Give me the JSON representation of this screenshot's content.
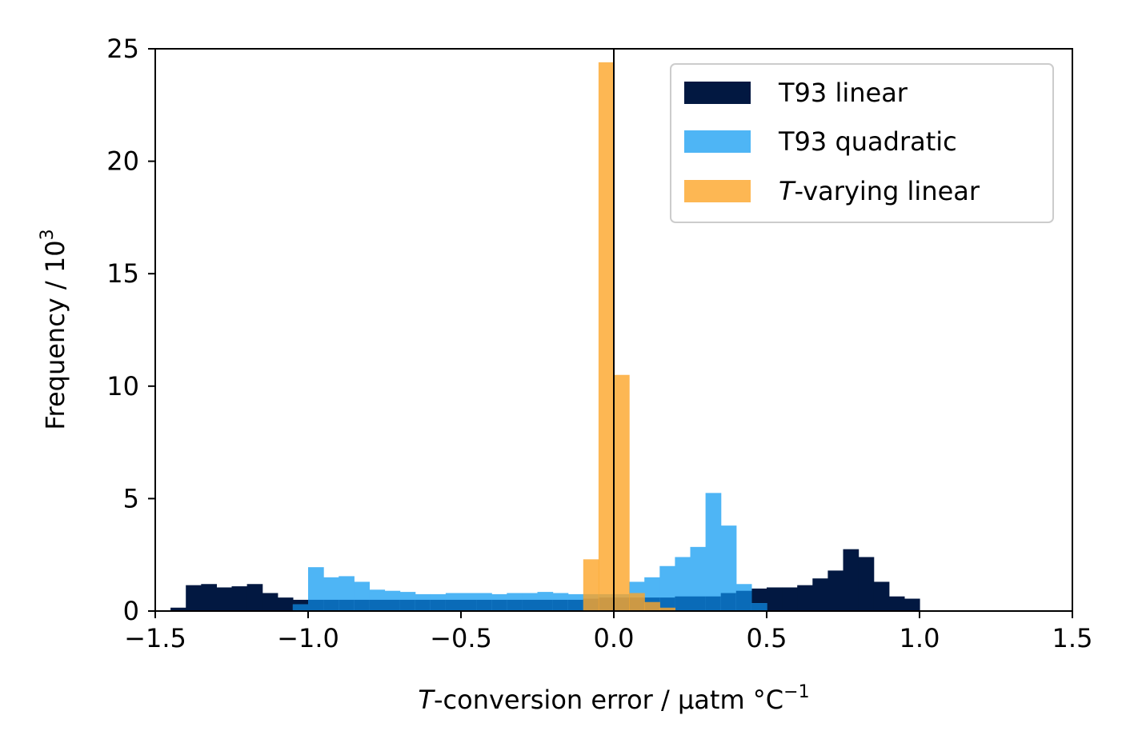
{
  "chart_data": {
    "type": "bar",
    "subtype": "histogram",
    "bin_width": 0.05,
    "xlim": [
      -1.5,
      1.5
    ],
    "ylim": [
      0,
      25
    ],
    "xticks": [
      -1.5,
      -1.0,
      -0.5,
      0.0,
      0.5,
      1.0,
      1.5
    ],
    "xtick_labels": [
      "−1.5",
      "−1.0",
      "−0.5",
      "0.0",
      "0.5",
      "1.0",
      "1.5"
    ],
    "yticks": [
      0,
      5,
      10,
      15,
      20,
      25
    ],
    "ytick_labels": [
      "0",
      "5",
      "10",
      "15",
      "20",
      "25"
    ],
    "xlabel": {
      "italic": "T",
      "rest": "-conversion error / µatm °C",
      "sup": "−1"
    },
    "ylabel": {
      "text": "Frequency / 10",
      "sup": "3"
    },
    "vline_x": 0.0,
    "legend_position": "top-right",
    "series": [
      {
        "name": "T93 linear",
        "label_italic": "",
        "label_rest": "T93 linear",
        "color": "#021841",
        "opacity": 1.0,
        "bins": [
          [
            -1.45,
            0.15
          ],
          [
            -1.4,
            1.15
          ],
          [
            -1.35,
            1.2
          ],
          [
            -1.3,
            1.05
          ],
          [
            -1.25,
            1.1
          ],
          [
            -1.2,
            1.2
          ],
          [
            -1.15,
            0.8
          ],
          [
            -1.1,
            0.6
          ],
          [
            -1.05,
            0.5
          ],
          [
            -1.0,
            0.5
          ],
          [
            -0.95,
            0.5
          ],
          [
            -0.9,
            0.5
          ],
          [
            -0.85,
            0.5
          ],
          [
            -0.8,
            0.5
          ],
          [
            -0.75,
            0.5
          ],
          [
            -0.7,
            0.5
          ],
          [
            -0.65,
            0.5
          ],
          [
            -0.6,
            0.5
          ],
          [
            -0.55,
            0.5
          ],
          [
            -0.5,
            0.5
          ],
          [
            -0.45,
            0.5
          ],
          [
            -0.4,
            0.5
          ],
          [
            -0.35,
            0.5
          ],
          [
            -0.3,
            0.5
          ],
          [
            -0.25,
            0.5
          ],
          [
            -0.2,
            0.5
          ],
          [
            -0.15,
            0.5
          ],
          [
            -0.1,
            0.55
          ],
          [
            -0.05,
            0.6
          ],
          [
            0.0,
            0.6
          ],
          [
            0.05,
            0.6
          ],
          [
            0.1,
            0.6
          ],
          [
            0.15,
            0.6
          ],
          [
            0.2,
            0.65
          ],
          [
            0.25,
            0.65
          ],
          [
            0.3,
            0.65
          ],
          [
            0.35,
            0.8
          ],
          [
            0.4,
            0.9
          ],
          [
            0.45,
            1.0
          ],
          [
            0.5,
            1.05
          ],
          [
            0.55,
            1.05
          ],
          [
            0.6,
            1.15
          ],
          [
            0.65,
            1.45
          ],
          [
            0.7,
            1.8
          ],
          [
            0.75,
            2.75
          ],
          [
            0.8,
            2.4
          ],
          [
            0.85,
            1.3
          ],
          [
            0.9,
            0.65
          ],
          [
            0.95,
            0.55
          ]
        ]
      },
      {
        "name": "T93 quadratic",
        "label_italic": "",
        "label_rest": "T93 quadratic",
        "color": "#4EB5F5",
        "opacity": 1.0,
        "blend_color": "#0A6BB8",
        "bins": [
          [
            -1.05,
            0.3
          ],
          [
            -1.0,
            1.95
          ],
          [
            -0.95,
            1.5
          ],
          [
            -0.9,
            1.55
          ],
          [
            -0.85,
            1.3
          ],
          [
            -0.8,
            0.95
          ],
          [
            -0.75,
            0.9
          ],
          [
            -0.7,
            0.85
          ],
          [
            -0.65,
            0.75
          ],
          [
            -0.6,
            0.75
          ],
          [
            -0.55,
            0.8
          ],
          [
            -0.5,
            0.8
          ],
          [
            -0.45,
            0.8
          ],
          [
            -0.4,
            0.75
          ],
          [
            -0.35,
            0.8
          ],
          [
            -0.3,
            0.8
          ],
          [
            -0.25,
            0.85
          ],
          [
            -0.2,
            0.8
          ],
          [
            -0.15,
            0.75
          ],
          [
            -0.1,
            0.75
          ],
          [
            -0.05,
            0.75
          ],
          [
            0.0,
            0.75
          ],
          [
            0.05,
            1.3
          ],
          [
            0.1,
            1.5
          ],
          [
            0.15,
            2.0
          ],
          [
            0.2,
            2.4
          ],
          [
            0.25,
            2.85
          ],
          [
            0.3,
            5.25
          ],
          [
            0.35,
            3.8
          ],
          [
            0.4,
            1.2
          ],
          [
            0.45,
            0.35
          ]
        ]
      },
      {
        "name": "T-varying linear",
        "label_italic": "T",
        "label_rest": "-varying linear",
        "color": "#FDA528",
        "opacity": 0.8,
        "bins": [
          [
            -0.1,
            2.3
          ],
          [
            -0.05,
            24.4
          ],
          [
            0.0,
            10.5
          ],
          [
            0.05,
            0.8
          ],
          [
            0.1,
            0.4
          ],
          [
            0.15,
            0.15
          ]
        ]
      }
    ]
  }
}
